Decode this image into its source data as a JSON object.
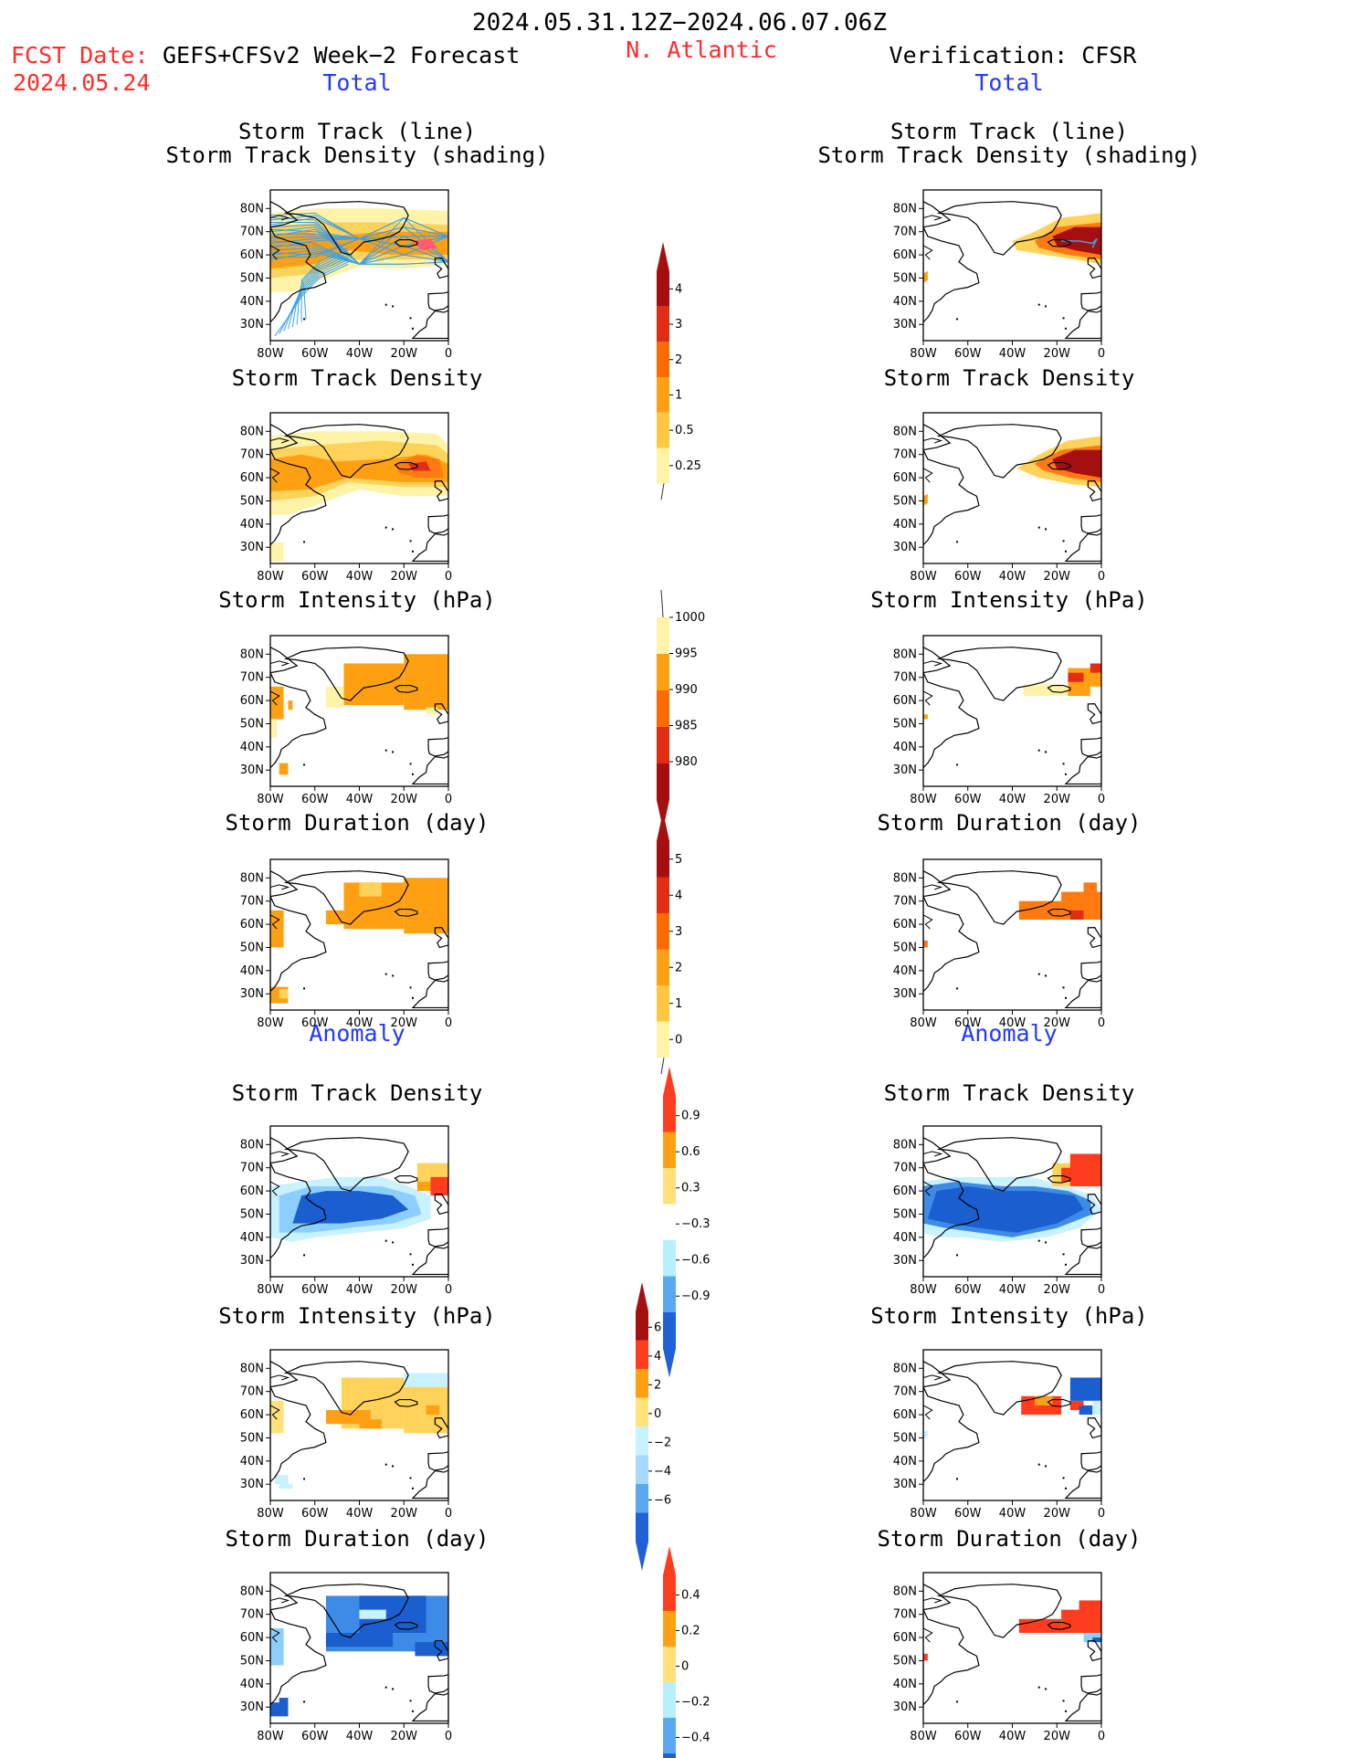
{
  "header": {
    "period": "2024.05.31.12Z−2024.06.07.06Z",
    "fcst_label": "FCST Date:",
    "fcst_date": "2024.05.24",
    "forecast_title": "GEFS+CFSv2 Week−2 Forecast",
    "region": "N. Atlantic",
    "verification": "Verification: CFSR"
  },
  "sections": {
    "total": "Total",
    "anomaly": "Anomaly"
  },
  "panel_titles": {
    "track_line": "Storm Track (line)",
    "track_density_shading": "Storm Track Density (shading)",
    "track_density": "Storm Track Density",
    "intensity": "Storm Intensity (hPa)",
    "duration": "Storm Duration (day)"
  },
  "axes": {
    "lat_labels": [
      "80N",
      "70N",
      "60N",
      "50N",
      "40N",
      "30N"
    ],
    "lon_labels": [
      "80W",
      "60W",
      "40W",
      "20W",
      "0"
    ]
  },
  "colorbars": [
    {
      "id": "density",
      "labels": [
        "4",
        "3",
        "2",
        "1",
        "0.5",
        "0.25"
      ],
      "colors": [
        "#a50f0f",
        "#e02d14",
        "#ff6a00",
        "#ffa012",
        "#ffc840",
        "#fff3a8"
      ]
    },
    {
      "id": "intensity",
      "labels": [
        "1000",
        "995",
        "990",
        "985",
        "980"
      ],
      "colors": [
        "#fff3a8",
        "#ffa012",
        "#ff6a00",
        "#e02d14",
        "#a50f0f"
      ]
    },
    {
      "id": "duration",
      "labels": [
        "5",
        "4",
        "3",
        "2",
        "1",
        "0"
      ],
      "colors": [
        "#a50f0f",
        "#e02d14",
        "#ff6a00",
        "#ffa012",
        "#ffc840",
        "#fff3a8"
      ]
    },
    {
      "id": "anom_density",
      "labels": [
        "0.9",
        "0.6",
        "0.3",
        "−0.3",
        "−0.6",
        "−0.9"
      ],
      "colors": [
        "#ff3c1e",
        "#ffa012",
        "#ffe27a",
        "#ffffff",
        "#b8efff",
        "#5aa8f0",
        "#1f62d8"
      ]
    },
    {
      "id": "anom_intensity",
      "labels": [
        "6",
        "4",
        "2",
        "0",
        "−2",
        "−4",
        "−6"
      ],
      "colors": [
        "#a50f0f",
        "#ff3c1e",
        "#ffa012",
        "#ffe27a",
        "#c8f2ff",
        "#a8d8ff",
        "#5aa8f0",
        "#1f62d8"
      ]
    },
    {
      "id": "anom_duration",
      "labels": [
        "0.4",
        "0.2",
        "0",
        "−0.2",
        "−0.4"
      ],
      "colors": [
        "#ff3c1e",
        "#ffa012",
        "#ffe27a",
        "#b8efff",
        "#5aa8f0",
        "#1f62d8"
      ]
    }
  ],
  "colors": {
    "header_red": "#ff2a2a",
    "section_blue": "#2238ff"
  }
}
